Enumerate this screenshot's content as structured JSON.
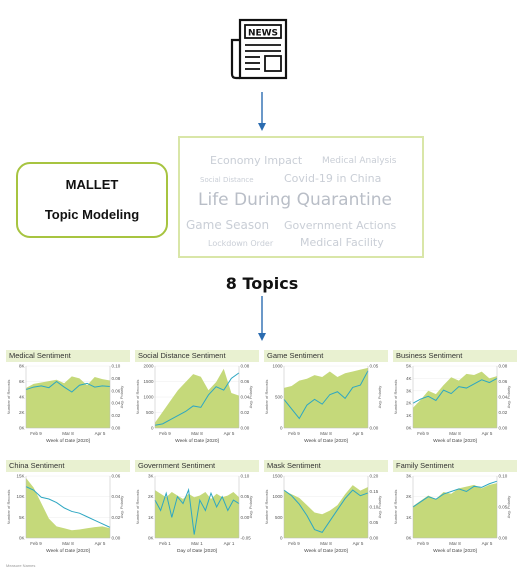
{
  "header": {
    "icon_text": "NEWS"
  },
  "method_box": {
    "line1": "MALLET",
    "line2": "Topic Modeling"
  },
  "word_cloud": {
    "words": [
      {
        "text": "Economy Impact"
      },
      {
        "text": "Medical Analysis"
      },
      {
        "text": "Social Distance"
      },
      {
        "text": "Covid-19 in China"
      },
      {
        "text": "Life During Quarantine"
      },
      {
        "text": "Game Season"
      },
      {
        "text": "Government Actions"
      },
      {
        "text": "Lockdown Order"
      },
      {
        "text": "Medical Facility"
      }
    ]
  },
  "topics_label": "8 Topics",
  "colors": {
    "area": "#c5d97a",
    "line": "#2ea7c2",
    "accent": "#a7c440",
    "panel_header": "#e9f1d1"
  },
  "charts_meta": {
    "y_left_label": "Number of Records",
    "y_right_label": "Avg. Polarity"
  },
  "chart_data": [
    {
      "type": "area",
      "title": "Medical Sentiment",
      "x_ticks": [
        "Feb 9",
        "Mar 8",
        "Apr 5"
      ],
      "xlabel": "Week of Date [2020]",
      "y_ticks": [
        "0K",
        "2K",
        "4K",
        "6K",
        "8K"
      ],
      "y_right_ticks": [
        "0.00",
        "0.02",
        "0.04",
        "0.06",
        "0.08",
        "0.10"
      ],
      "ylim": [
        0,
        9000
      ],
      "y2lim": [
        0,
        0.1
      ],
      "records": [
        5800,
        6400,
        6600,
        6800,
        7000,
        6500,
        7500,
        7200,
        6200,
        7400,
        7100,
        6900
      ],
      "polarity": [
        0.062,
        0.066,
        0.068,
        0.065,
        0.075,
        0.066,
        0.058,
        0.069,
        0.072,
        0.066,
        0.068,
        0.067
      ]
    },
    {
      "type": "area",
      "title": "Social Distance Sentiment",
      "x_ticks": [
        "Feb 9",
        "Mar 8",
        "Apr 5"
      ],
      "xlabel": "Week of Date [2020]",
      "y_ticks": [
        "0",
        "500",
        "1000",
        "1500",
        "2000"
      ],
      "y_right_ticks": [
        "0.00",
        "0.02",
        "0.04",
        "0.06",
        "0.08"
      ],
      "ylim": [
        0,
        2300
      ],
      "y2lim": [
        0,
        0.09
      ],
      "records": [
        200,
        600,
        1000,
        1400,
        1700,
        2000,
        1900,
        1400,
        1700,
        2200,
        1300,
        1200
      ],
      "polarity": [
        0.004,
        0.006,
        0.012,
        0.018,
        0.024,
        0.032,
        0.03,
        0.048,
        0.06,
        0.055,
        0.072,
        0.08
      ]
    },
    {
      "type": "area",
      "title": "Game Sentiment",
      "x_ticks": [
        "Feb 9",
        "Mar 8",
        "Apr 5"
      ],
      "xlabel": "Week of Date [2020]",
      "y_ticks": [
        "0",
        "500",
        "1000"
      ],
      "y_right_ticks": [
        "0.00",
        "0.05"
      ],
      "ylim": [
        -600,
        1100
      ],
      "y2lim": [
        -0.03,
        0.1
      ],
      "records": [
        500,
        550,
        700,
        750,
        850,
        800,
        950,
        800,
        900,
        950,
        1000,
        1050
      ],
      "polarity": [
        0.03,
        0.01,
        -0.01,
        0.018,
        0.03,
        0.02,
        0.04,
        0.046,
        0.032,
        0.055,
        0.06,
        0.09
      ]
    },
    {
      "type": "area",
      "title": "Business Sentiment",
      "x_ticks": [
        "Feb 9",
        "Mar 8",
        "Apr 5"
      ],
      "xlabel": "Week of Date [2020]",
      "y_ticks": [
        "0K",
        "1K",
        "2K",
        "3K",
        "4K",
        "5K"
      ],
      "y_right_ticks": [
        "0.00",
        "0.02",
        "0.04",
        "0.06",
        "0.08"
      ],
      "ylim": [
        0,
        5500
      ],
      "y2lim": [
        0,
        0.09
      ],
      "records": [
        1800,
        2500,
        3300,
        3000,
        3800,
        4500,
        4200,
        4800,
        4700,
        5000,
        4400,
        4600
      ],
      "polarity": [
        0.036,
        0.042,
        0.046,
        0.04,
        0.055,
        0.05,
        0.06,
        0.058,
        0.064,
        0.07,
        0.066,
        0.072
      ]
    },
    {
      "type": "area",
      "title": "China Sentiment",
      "x_ticks": [
        "Feb 9",
        "Mar 8",
        "Apr 5"
      ],
      "xlabel": "Week of Date [2020]",
      "y_ticks": [
        "0K",
        "5K",
        "10K",
        "15K"
      ],
      "y_right_ticks": [
        "0.00",
        "0.02",
        "0.04",
        "0.06"
      ],
      "ylim": [
        0,
        16000
      ],
      "y2lim": [
        0,
        0.07
      ],
      "records": [
        15500,
        13000,
        9000,
        5000,
        3000,
        2500,
        2000,
        2200,
        2500,
        2800,
        3000,
        2500
      ],
      "polarity": [
        0.058,
        0.054,
        0.046,
        0.044,
        0.04,
        0.034,
        0.03,
        0.028,
        0.024,
        0.02,
        0.016,
        0.012
      ]
    },
    {
      "type": "area",
      "title": "Government Sentiment",
      "x_ticks": [
        "Feb 1",
        "Mar 1",
        "Apr 1"
      ],
      "xlabel": "Day of Date [2020]",
      "y_ticks": [
        "0K",
        "1K",
        "2K",
        "3K"
      ],
      "y_right_ticks": [
        "-0.05",
        "0.00",
        "0.05",
        "0.10"
      ],
      "ylim": [
        0,
        3500
      ],
      "y2lim": [
        -0.07,
        0.11
      ],
      "records": [
        2700,
        2500,
        2300,
        2600,
        2400,
        2200,
        2500,
        2300,
        2400,
        2600,
        2200,
        2500,
        2300,
        2400,
        2600,
        2300
      ],
      "polarity": [
        0.04,
        0.01,
        0.06,
        -0.01,
        0.05,
        0.03,
        0.07,
        -0.06,
        0.04,
        0.01,
        0.06,
        0.02,
        0.05,
        0.01,
        0.04,
        0.03
      ]
    },
    {
      "type": "area",
      "title": "Mask Sentiment",
      "x_ticks": [
        "Feb 9",
        "Mar 8",
        "Apr 5"
      ],
      "xlabel": "Week of Date [2020]",
      "y_ticks": [
        "0",
        "500",
        "1000",
        "1500"
      ],
      "y_right_ticks": [
        "0.00",
        "0.05",
        "0.10",
        "0.15",
        "0.20"
      ],
      "ylim": [
        0,
        1700
      ],
      "y2lim": [
        0,
        0.22
      ],
      "records": [
        1300,
        1200,
        1100,
        900,
        700,
        650,
        750,
        900,
        1200,
        1450,
        1300,
        1400
      ],
      "polarity": [
        0.17,
        0.15,
        0.12,
        0.08,
        0.03,
        0.02,
        0.06,
        0.1,
        0.14,
        0.17,
        0.15,
        0.16
      ]
    },
    {
      "type": "area",
      "title": "Family Sentiment",
      "x_ticks": [
        "Feb 9",
        "Mar 8",
        "Apr 5"
      ],
      "xlabel": "Week of Date [2020]",
      "y_ticks": [
        "0K",
        "1K",
        "2K",
        "3K"
      ],
      "y_right_ticks": [
        "0.00",
        "0.05",
        "0.10"
      ],
      "ylim": [
        0,
        3500
      ],
      "y2lim": [
        0,
        0.12
      ],
      "records": [
        1800,
        2100,
        2400,
        2200,
        2600,
        2500,
        2800,
        2900,
        3000,
        2800,
        3000,
        3100
      ],
      "polarity": [
        0.06,
        0.07,
        0.08,
        0.075,
        0.085,
        0.09,
        0.095,
        0.09,
        0.1,
        0.098,
        0.105,
        0.11
      ]
    }
  ],
  "footer_note": "Measure Names"
}
